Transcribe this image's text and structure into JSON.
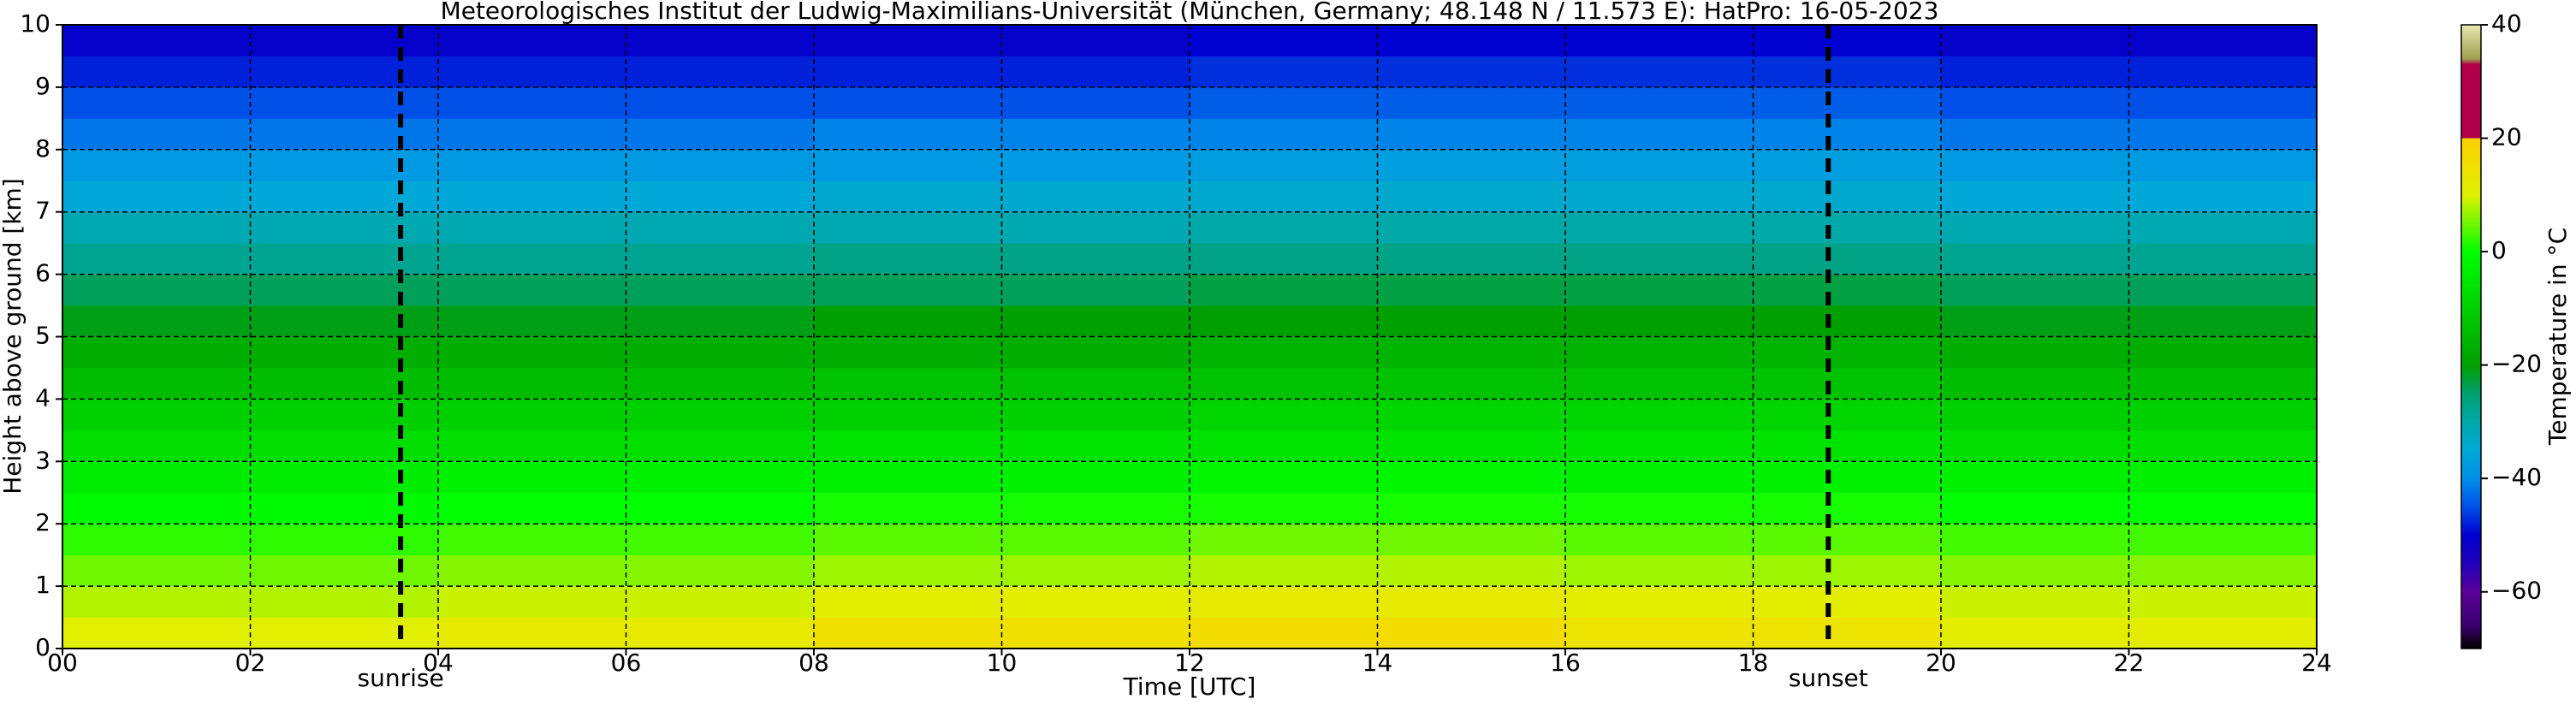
{
  "chart_data": {
    "type": "heatmap",
    "title": "Meteorologisches Institut der Ludwig-Maximilians-Universität (München, Germany; 48.148 N / 11.573 E):    HatPro: 16-05-2023",
    "x_label": "Time [UTC]",
    "y_label": "Height above ground [km]",
    "colorbar_label": "Temperature in °C",
    "xlim": [
      0,
      24
    ],
    "xticks": [
      {
        "value": 0,
        "label": "00"
      },
      {
        "value": 2,
        "label": "02"
      },
      {
        "value": 4,
        "label": "04"
      },
      {
        "value": 6,
        "label": "06"
      },
      {
        "value": 8,
        "label": "08"
      },
      10,
      12,
      14,
      16,
      18,
      20,
      22,
      24
    ],
    "ylim": [
      0,
      10
    ],
    "yticks": [
      0,
      1,
      2,
      3,
      4,
      5,
      6,
      7,
      8,
      9,
      10
    ],
    "clim": [
      -70,
      40
    ],
    "cticks": [
      {
        "value": -60,
        "label": "−60"
      },
      {
        "value": -40,
        "label": "−40"
      },
      {
        "value": -20,
        "label": "−20"
      },
      0,
      20,
      40
    ],
    "grid": true,
    "colorscale": [
      [
        -70,
        "#000000"
      ],
      [
        -66,
        "#3a0070"
      ],
      [
        -60,
        "#5a0098"
      ],
      [
        -55,
        "#2000b8"
      ],
      [
        -50,
        "#0000d0"
      ],
      [
        -45,
        "#0050e8"
      ],
      [
        -40,
        "#0090e8"
      ],
      [
        -35,
        "#00a8d8"
      ],
      [
        -30,
        "#00a8a8"
      ],
      [
        -25,
        "#00a070"
      ],
      [
        -20,
        "#00a000"
      ],
      [
        -10,
        "#00d000"
      ],
      [
        0,
        "#00ff00"
      ],
      [
        10,
        "#e0f000"
      ],
      [
        20,
        "#ffd000"
      ],
      [
        20.01,
        "#b0004a"
      ],
      [
        33,
        "#b0004a"
      ],
      [
        34,
        "#a0a050"
      ],
      [
        40,
        "#e8e8b0"
      ]
    ],
    "x_edges": [
      0,
      4,
      8,
      12,
      16,
      20,
      24
    ],
    "y_edges": [
      0,
      0.5,
      1,
      1.5,
      2,
      2.5,
      3,
      3.5,
      4,
      4.5,
      5,
      5.5,
      6,
      6.5,
      7,
      7.5,
      8,
      8.5,
      9,
      9.5,
      10
    ],
    "values": [
      [
        10,
        12,
        15,
        16,
        14,
        11
      ],
      [
        8,
        9,
        11,
        12,
        11,
        9
      ],
      [
        5,
        6,
        7,
        8,
        7,
        6
      ],
      [
        2,
        3,
        4,
        5,
        4,
        3
      ],
      [
        -1,
        0,
        1,
        1,
        1,
        0
      ],
      [
        -4,
        -3,
        -3,
        -2,
        -3,
        -3
      ],
      [
        -7,
        -7,
        -6,
        -6,
        -6,
        -7
      ],
      [
        -10,
        -10,
        -10,
        -9,
        -9,
        -10
      ],
      [
        -14,
        -14,
        -13,
        -13,
        -13,
        -14
      ],
      [
        -17,
        -17,
        -17,
        -16,
        -16,
        -17
      ],
      [
        -21,
        -21,
        -20,
        -20,
        -20,
        -21
      ],
      [
        -24,
        -24,
        -24,
        -23,
        -23,
        -24
      ],
      [
        -28,
        -28,
        -27,
        -27,
        -27,
        -28
      ],
      [
        -31,
        -31,
        -31,
        -30,
        -30,
        -31
      ],
      [
        -35,
        -35,
        -34,
        -34,
        -34,
        -35
      ],
      [
        -38,
        -38,
        -38,
        -37,
        -37,
        -38
      ],
      [
        -42,
        -42,
        -41,
        -41,
        -41,
        -42
      ],
      [
        -45,
        -45,
        -45,
        -44,
        -44,
        -45
      ],
      [
        -48,
        -48,
        -48,
        -47,
        -47,
        -48
      ],
      [
        -51,
        -51,
        -51,
        -50,
        -50,
        -51
      ]
    ],
    "annotations": [
      {
        "label": "sunrise",
        "x": 3.6
      },
      {
        "label": "sunset",
        "x": 18.8
      }
    ]
  }
}
